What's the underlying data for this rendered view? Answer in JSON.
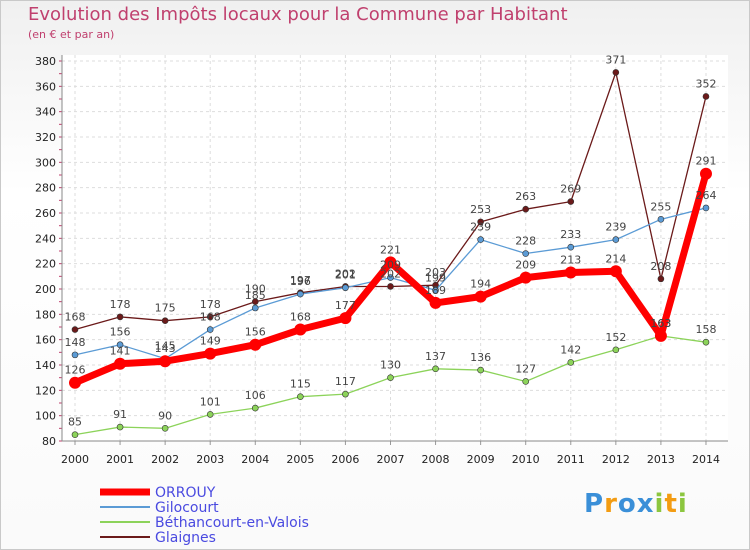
{
  "chart_data": {
    "type": "line",
    "title": "Evolution des Impôts locaux pour la Commune par Habitant",
    "subtitle": "(en € et par an)",
    "x": [
      2000,
      2001,
      2002,
      2003,
      2004,
      2005,
      2006,
      2007,
      2008,
      2009,
      2010,
      2011,
      2012,
      2013,
      2014
    ],
    "ylim": [
      80,
      380
    ],
    "yticks": [
      80,
      100,
      120,
      140,
      160,
      180,
      200,
      220,
      240,
      260,
      280,
      300,
      320,
      340,
      360,
      380
    ],
    "grid": true,
    "legend_position": "bottom-left",
    "series": [
      {
        "name": "ORROUY",
        "color": "#ff0000",
        "values": [
          126,
          141,
          143,
          149,
          156,
          168,
          177,
          221,
          189,
          194,
          209,
          213,
          214,
          163,
          291
        ]
      },
      {
        "name": "Gilocourt",
        "color": "#5b9bd5",
        "values": [
          148,
          156,
          145,
          168,
          185,
          196,
          201,
          209,
          199,
          239,
          228,
          233,
          239,
          255,
          264
        ]
      },
      {
        "name": "Béthancourt-en-Valois",
        "color": "#8cd35a",
        "values": [
          85,
          91,
          90,
          101,
          106,
          115,
          117,
          130,
          137,
          136,
          127,
          142,
          152,
          163,
          158
        ]
      },
      {
        "name": "Glaignes",
        "color": "#6b1a1a",
        "values": [
          168,
          178,
          175,
          178,
          190,
          197,
          202,
          202,
          203,
          253,
          263,
          269,
          371,
          208,
          352
        ]
      }
    ]
  },
  "logo": {
    "letters": [
      "P",
      "r",
      "o",
      "x",
      "i",
      "t",
      "i"
    ],
    "colors": [
      "#3a8fd8",
      "#f39c12",
      "#3a8fd8",
      "#3a8fd8",
      "#8cc63f",
      "#f39c12",
      "#8cc63f"
    ]
  }
}
